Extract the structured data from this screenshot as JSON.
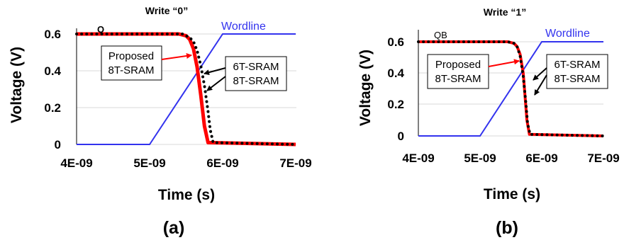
{
  "colors": {
    "wordline": "#3333ee",
    "proposed_8t": "#ff0000",
    "sram_6t_8t": "#000000",
    "grid": "#d9d9d9"
  },
  "chart_data": [
    {
      "type": "line",
      "title": "Write “0”",
      "xlabel": "Time (s)",
      "ylabel": "Voltage (V)",
      "panel_label": "(a)",
      "xlim": [
        4e-09,
        7e-09
      ],
      "ylim": [
        0,
        0.6
      ],
      "x_ticks": [
        "4E-09",
        "5E-09",
        "6E-09",
        "7E-09"
      ],
      "y_ticks": [
        "0",
        "0.2",
        "0.4",
        "0.6"
      ],
      "grid": "horizontal",
      "node_label": "Q",
      "series": [
        {
          "name": "Wordline",
          "x": [
            4e-09,
            5e-09,
            6e-09,
            7e-09
          ],
          "y": [
            0,
            0,
            0.6,
            0.6
          ]
        },
        {
          "name": "Proposed 8T-SRAM",
          "x": [
            4e-09,
            5.4e-09,
            5.5e-09,
            5.55e-09,
            5.6e-09,
            5.65e-09,
            5.7e-09,
            5.75e-09,
            5.8e-09,
            7e-09
          ],
          "y": [
            0.6,
            0.6,
            0.59,
            0.57,
            0.52,
            0.42,
            0.27,
            0.1,
            0.01,
            0
          ]
        },
        {
          "name": "6T-SRAM 8T-SRAM",
          "x": [
            4e-09,
            5.45e-09,
            5.55e-09,
            5.6e-09,
            5.65e-09,
            5.7e-09,
            5.75e-09,
            5.8e-09,
            5.83e-09,
            5.87e-09,
            7e-09
          ],
          "y": [
            0.6,
            0.6,
            0.58,
            0.56,
            0.51,
            0.43,
            0.32,
            0.18,
            0.08,
            0.01,
            0
          ]
        }
      ],
      "annotations": [
        "Proposed",
        "8T-SRAM",
        "6T-SRAM",
        "8T-SRAM"
      ]
    },
    {
      "type": "line",
      "title": "Write “1”",
      "xlabel": "Time (s)",
      "ylabel": "Voltage (V)",
      "panel_label": "(b)",
      "xlim": [
        4e-09,
        7e-09
      ],
      "ylim": [
        0,
        0.6
      ],
      "x_ticks": [
        "4E-09",
        "5E-09",
        "6E-09",
        "7E-09"
      ],
      "y_ticks": [
        "0",
        "0.2",
        "0.4",
        "0.6"
      ],
      "grid": "horizontal",
      "node_label": "QB",
      "series": [
        {
          "name": "Wordline",
          "x": [
            4e-09,
            5e-09,
            6e-09,
            7e-09
          ],
          "y": [
            0,
            0,
            0.6,
            0.6
          ]
        },
        {
          "name": "Proposed 8T-SRAM",
          "x": [
            4e-09,
            5.45e-09,
            5.55e-09,
            5.6e-09,
            5.65e-09,
            5.7e-09,
            5.73e-09,
            5.76e-09,
            5.8e-09,
            7e-09
          ],
          "y": [
            0.6,
            0.6,
            0.59,
            0.57,
            0.52,
            0.4,
            0.25,
            0.1,
            0.01,
            0
          ]
        },
        {
          "name": "6T-SRAM 8T-SRAM",
          "x": [
            4e-09,
            5.45e-09,
            5.55e-09,
            5.6e-09,
            5.65e-09,
            5.7e-09,
            5.74e-09,
            5.77e-09,
            5.81e-09,
            7e-09
          ],
          "y": [
            0.6,
            0.6,
            0.59,
            0.57,
            0.51,
            0.38,
            0.22,
            0.08,
            0.01,
            0
          ]
        }
      ],
      "annotations": [
        "Proposed",
        "8T-SRAM",
        "6T-SRAM",
        "8T-SRAM"
      ]
    }
  ]
}
